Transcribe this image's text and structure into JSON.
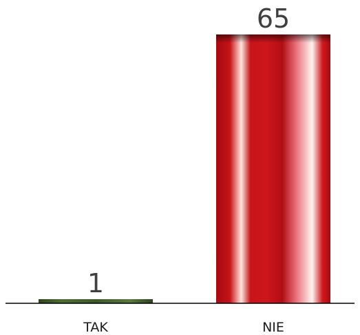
{
  "chart_data": {
    "type": "bar",
    "categories": [
      "TAK",
      "NIE"
    ],
    "values": [
      1,
      65
    ],
    "ylim": [
      0,
      65
    ],
    "grid": false,
    "legend": "none",
    "data_labels": [
      "1",
      "65"
    ],
    "colors": {
      "TAK": "#3f5a2a",
      "NIE": "#c8141a",
      "axis": "#000000"
    }
  }
}
